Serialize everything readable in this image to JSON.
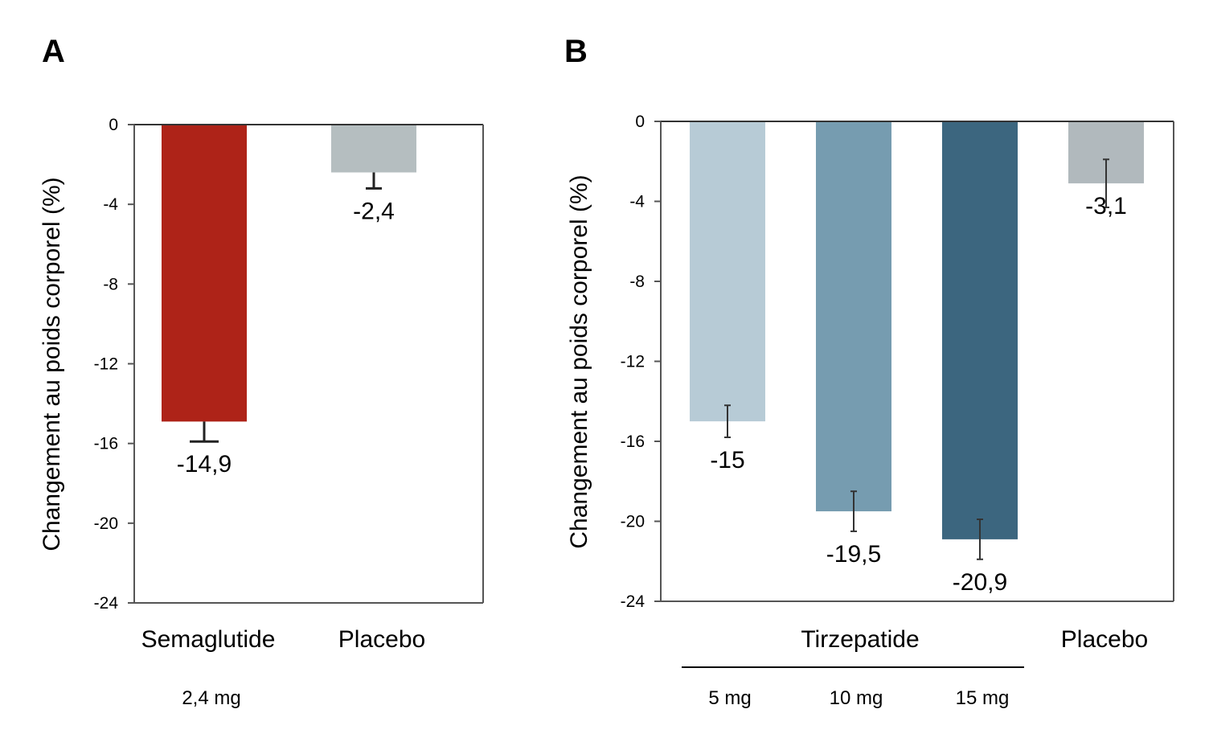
{
  "chart_data": [
    {
      "type": "bar",
      "panel": "A",
      "ylabel": "Changement au poids corporel (%)",
      "ylim": [
        -24,
        0
      ],
      "yticks": [
        "0",
        "-4",
        "-8",
        "-12",
        "-16",
        "-20",
        "-24"
      ],
      "categories": [
        "Semaglutide",
        "Placebo"
      ],
      "sublabels": [
        "2,4 mg",
        ""
      ],
      "values": [
        -14.9,
        -2.4
      ],
      "value_labels": [
        "-14,9",
        "-2,4"
      ],
      "error": [
        1.0,
        0.8
      ],
      "colors": [
        "#ae2318",
        "#b5bec0"
      ]
    },
    {
      "type": "bar",
      "panel": "B",
      "ylabel": "Changement au poids corporel (%)",
      "ylim": [
        -24,
        0
      ],
      "yticks": [
        "0",
        "-4",
        "-8",
        "-12",
        "-16",
        "-20",
        "-24"
      ],
      "categories": [
        "5 mg",
        "10 mg",
        "15 mg",
        "Placebo"
      ],
      "group_label": "Tirzepatide",
      "values": [
        -15,
        -19.5,
        -20.9,
        -3.1
      ],
      "value_labels": [
        "-15",
        "-19,5",
        "-20,9",
        "-3,1"
      ],
      "error": [
        0.8,
        1.0,
        1.0,
        1.2
      ],
      "colors": [
        "#b7cbd6",
        "#769cb0",
        "#3c667f",
        "#b1b9bd"
      ]
    }
  ]
}
